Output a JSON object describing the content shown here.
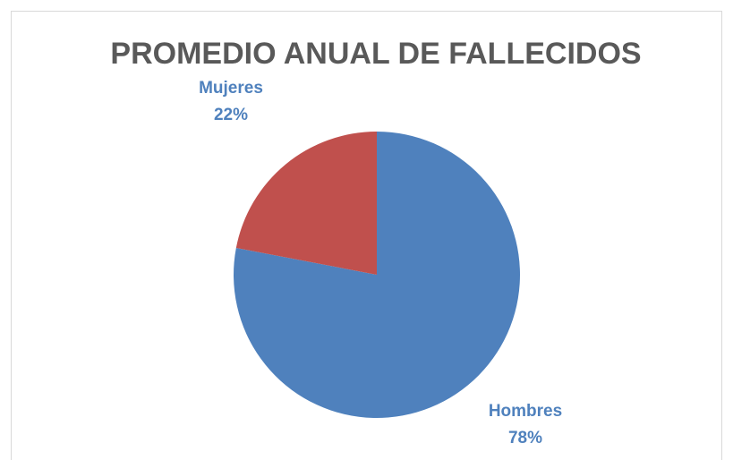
{
  "chart_data": {
    "type": "pie",
    "title": "PROMEDIO ANUAL DE FALLECIDOS",
    "categories": [
      "Hombres",
      "Mujeres"
    ],
    "values": [
      78,
      22
    ],
    "value_labels": [
      "78%",
      "22%"
    ],
    "colors": [
      "#4f81bd",
      "#c0504d"
    ],
    "label_color": "#4f81bd"
  }
}
